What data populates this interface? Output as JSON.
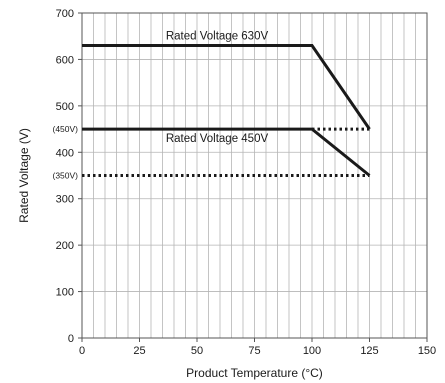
{
  "chart_data": {
    "type": "line",
    "xlabel": "Product Temperature (°C)",
    "ylabel": "Rated Voltage (V)",
    "xlim": [
      0,
      150
    ],
    "ylim": [
      0,
      700
    ],
    "x_ticks": [
      0,
      25,
      50,
      75,
      100,
      125,
      150
    ],
    "y_ticks": [
      0,
      100,
      200,
      300,
      400,
      500,
      600,
      700
    ],
    "y_extra_ticks": [
      {
        "value": 450,
        "label": "(450V)"
      },
      {
        "value": 350,
        "label": "(350V)"
      }
    ],
    "grid": {
      "x_minor_step": 5,
      "y_major_step": 100
    },
    "series": [
      {
        "name": "Rated Voltage 630V",
        "style": "solid",
        "x": [
          0,
          100,
          125
        ],
        "y": [
          630,
          630,
          450
        ]
      },
      {
        "name": "Rated Voltage 450V",
        "style": "solid",
        "x": [
          0,
          100,
          125
        ],
        "y": [
          450,
          450,
          350
        ]
      }
    ],
    "reference_lines": [
      {
        "style": "dotted",
        "x": [
          100,
          125
        ],
        "y": [
          450,
          450
        ]
      },
      {
        "style": "dotted",
        "x": [
          0,
          125
        ],
        "y": [
          350,
          350
        ]
      }
    ],
    "colors": {
      "line": "#1a1a1a",
      "grid": "#b5b5b5",
      "frame": "#555555"
    }
  }
}
